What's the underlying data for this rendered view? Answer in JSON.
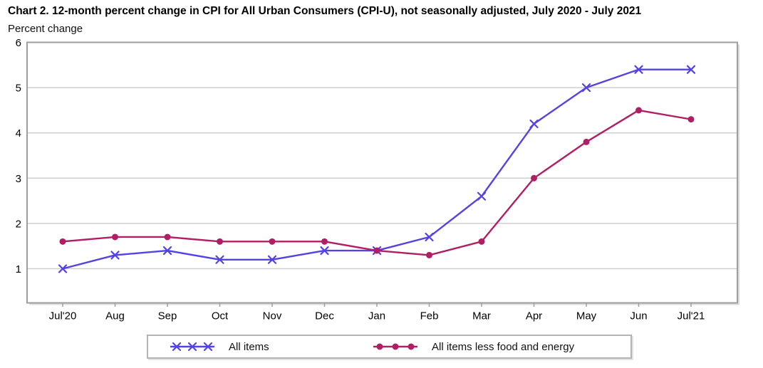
{
  "header": {
    "title": "Chart 2. 12-month percent change in CPI for All Urban Consumers (CPI-U), not seasonally adjusted, July 2020 - July 2021",
    "unit_caption": "Percent change"
  },
  "colors": {
    "all_items_line": "#5343e5",
    "core_line": "#b01f63",
    "gridline": "#cfcfcf",
    "axis_border": "#9e9e9e",
    "tick": "#9e9e9e",
    "text": "#000000"
  },
  "chart_data": {
    "type": "line",
    "title": "Chart 2. 12-month percent change in CPI for All Urban Consumers (CPI-U), not seasonally adjusted, July 2020 - July 2021",
    "ylabel": "Percent change",
    "xlabel": "",
    "categories": [
      "Jul'20",
      "Aug",
      "Sep",
      "Oct",
      "Nov",
      "Dec",
      "Jan",
      "Feb",
      "Mar",
      "Apr",
      "May",
      "Jun",
      "Jul'21"
    ],
    "series": [
      {
        "name": "All items",
        "marker": "x",
        "color": "#5343e5",
        "values": [
          1.0,
          1.3,
          1.4,
          1.2,
          1.2,
          1.4,
          1.4,
          1.7,
          2.6,
          4.2,
          5.0,
          5.4,
          5.4
        ]
      },
      {
        "name": "All items less food and energy",
        "marker": "circle",
        "color": "#b01f63",
        "values": [
          1.6,
          1.7,
          1.7,
          1.6,
          1.6,
          1.6,
          1.4,
          1.3,
          1.6,
          3.0,
          3.8,
          4.5,
          4.3
        ]
      }
    ],
    "yticks": [
      1,
      2,
      3,
      4,
      5,
      6
    ],
    "ylim": [
      0.25,
      6.0
    ],
    "grid": true,
    "legend_position": "bottom-center"
  }
}
